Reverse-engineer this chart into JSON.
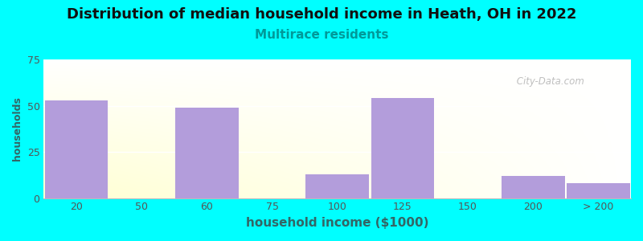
{
  "title": "Distribution of median household income in Heath, OH in 2022",
  "subtitle": "Multirace residents",
  "xlabel": "household income ($1000)",
  "ylabel": "households",
  "figure_bg": "#00FFFF",
  "bar_color": "#b39ddb",
  "title_fontsize": 13,
  "title_color": "#111111",
  "subtitle_fontsize": 11,
  "subtitle_color": "#009999",
  "xlabel_color": "#336666",
  "ylabel_color": "#336666",
  "xlabel_fontsize": 11,
  "ylabel_fontsize": 9,
  "tick_color": "#555555",
  "tick_fontsize": 9,
  "ylim": [
    0,
    75
  ],
  "yticks": [
    0,
    25,
    50,
    75
  ],
  "xtick_labels": [
    "20",
    "50",
    "60",
    "75",
    "100",
    "125",
    "150",
    "200",
    "> 200"
  ],
  "xtick_positions": [
    0,
    1,
    2,
    3,
    4,
    5,
    6,
    7,
    8
  ],
  "bar_x": [
    0,
    2,
    4,
    5,
    7,
    8
  ],
  "bar_heights": [
    53,
    49,
    13,
    54,
    12,
    8
  ],
  "bar_widths": [
    0.97,
    0.97,
    0.97,
    0.97,
    0.97,
    0.97
  ],
  "watermark": " City-Data.com",
  "watermark_color": "#aaaaaa",
  "grid_color": "#ffffff",
  "plot_bg_top": "#f8fff8",
  "plot_bg_bottom": "#e8ffe8"
}
